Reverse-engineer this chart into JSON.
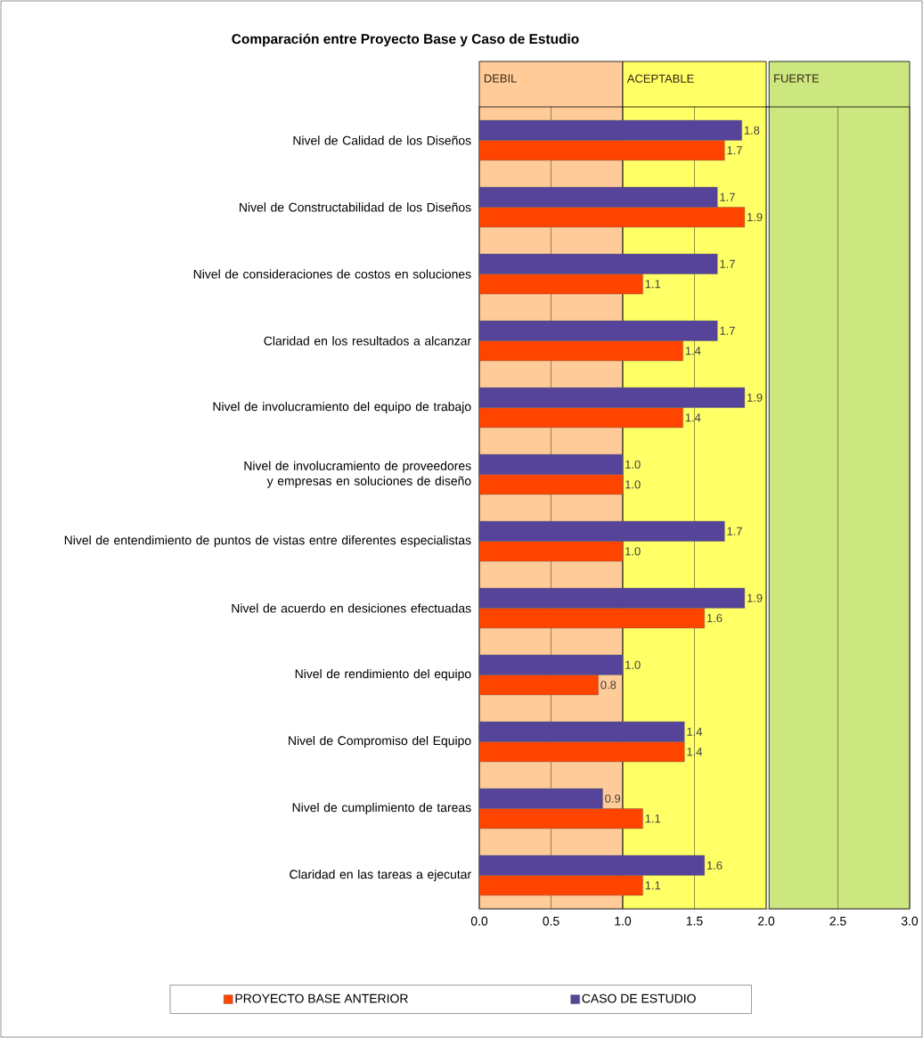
{
  "chart_data": {
    "type": "bar",
    "orientation": "horizontal",
    "title": "Comparación entre Proyecto Base y Caso de Estudio",
    "categories": [
      "Nivel de Calidad de los Diseños",
      "Nivel de Constructabilidad de los Diseños",
      "Nivel de consideraciones de costos en soluciones",
      "Claridad en los resultados a alcanzar",
      "Nivel de involucramiento del equipo de trabajo",
      "Nivel de involucramiento de proveedores y empresas en soluciones de diseño",
      "Nivel de entendimiento de puntos de vistas entre diferentes especialistas",
      "Nivel de acuerdo en desiciones efectuadas",
      "Nivel de rendimiento del equipo",
      "Nivel de Compromiso del Equipo",
      "Nivel de cumplimiento de tareas",
      "Claridad en las tareas a ejecutar"
    ],
    "series": [
      {
        "name": "PROYECTO BASE ANTERIOR",
        "color": "#ff4400",
        "values": [
          1.71,
          1.85,
          1.14,
          1.42,
          1.42,
          1.0,
          1.0,
          1.57,
          0.83,
          1.43,
          1.14,
          1.14
        ],
        "value_labels": [
          "1.7",
          "1.9",
          "1.1",
          "1.4",
          "1.4",
          "1.0",
          "1.0",
          "1.6",
          "0.8",
          "1.4",
          "1.1",
          "1.1"
        ]
      },
      {
        "name": "CASO DE ESTUDIO",
        "color": "#554499",
        "values": [
          1.83,
          1.66,
          1.66,
          1.66,
          1.85,
          1.0,
          1.71,
          1.85,
          1.0,
          1.43,
          0.86,
          1.57
        ],
        "value_labels": [
          "1.8",
          "1.7",
          "1.7",
          "1.7",
          "1.9",
          "1.0",
          "1.7",
          "1.9",
          "1.0",
          "1.4",
          "0.9",
          "1.6"
        ]
      }
    ],
    "xlim": [
      0,
      3
    ],
    "xticks": [
      {
        "value": 0,
        "label": "0.0"
      },
      {
        "value": 0.5,
        "label": "0.5"
      },
      {
        "value": 1,
        "label": "1.0"
      },
      {
        "value": 1.5,
        "label": "1.5"
      },
      {
        "value": 2,
        "label": "2.0"
      },
      {
        "value": 2.5,
        "label": "2.5"
      },
      {
        "value": 3,
        "label": "3.0"
      }
    ],
    "bands": [
      {
        "axis": "x",
        "from": 0,
        "to": 1,
        "label": "DEBIL",
        "color": "#ffcc99"
      },
      {
        "axis": "x",
        "from": 1,
        "to": 2,
        "label": "ACEPTABLE",
        "color": "#ffff66"
      },
      {
        "axis": "x",
        "from": 2.02,
        "to": 3,
        "label": "FUERTE",
        "color": "#cce680"
      }
    ],
    "grid": "x",
    "legend": "bottom"
  }
}
